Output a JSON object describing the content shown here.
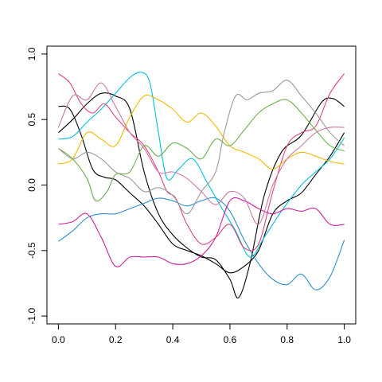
{
  "chart_data": {
    "type": "line",
    "title": "",
    "xlabel": "",
    "ylabel": "",
    "xlim": [
      -0.04,
      1.04
    ],
    "ylim": [
      -1.06,
      1.06
    ],
    "x_ticks": [
      0.0,
      0.2,
      0.4,
      0.6,
      0.8,
      1.0
    ],
    "x_tick_labels": [
      "0.0",
      "0.2",
      "0.4",
      "0.6",
      "0.8",
      "1.0"
    ],
    "y_ticks": [
      -1.0,
      -0.5,
      0.0,
      0.5,
      1.0
    ],
    "y_tick_labels": [
      "-1.0",
      "-0.5",
      "0.0",
      "0.5",
      "1.0"
    ],
    "grid": false,
    "legend": "none",
    "series": [
      {
        "color": "#000000",
        "points": [
          [
            0.0,
            0.4
          ],
          [
            0.05,
            0.5
          ],
          [
            0.1,
            0.62
          ],
          [
            0.15,
            0.7
          ],
          [
            0.2,
            0.68
          ],
          [
            0.25,
            0.58
          ],
          [
            0.3,
            0.1
          ],
          [
            0.35,
            -0.22
          ],
          [
            0.4,
            -0.38
          ],
          [
            0.45,
            -0.48
          ],
          [
            0.5,
            -0.55
          ],
          [
            0.55,
            -0.57
          ],
          [
            0.6,
            -0.72
          ],
          [
            0.63,
            -0.86
          ],
          [
            0.67,
            -0.6
          ],
          [
            0.72,
            -0.08
          ],
          [
            0.78,
            0.25
          ],
          [
            0.85,
            0.38
          ],
          [
            0.92,
            0.63
          ],
          [
            0.96,
            0.66
          ],
          [
            1.0,
            0.6
          ]
        ]
      },
      {
        "color": "#000000",
        "points": [
          [
            0.0,
            0.6
          ],
          [
            0.04,
            0.58
          ],
          [
            0.08,
            0.38
          ],
          [
            0.12,
            0.12
          ],
          [
            0.16,
            0.06
          ],
          [
            0.2,
            0.04
          ],
          [
            0.25,
            -0.06
          ],
          [
            0.3,
            -0.16
          ],
          [
            0.35,
            -0.3
          ],
          [
            0.4,
            -0.45
          ],
          [
            0.45,
            -0.5
          ],
          [
            0.5,
            -0.54
          ],
          [
            0.55,
            -0.6
          ],
          [
            0.6,
            -0.67
          ],
          [
            0.65,
            -0.62
          ],
          [
            0.7,
            -0.5
          ],
          [
            0.75,
            -0.22
          ],
          [
            0.8,
            -0.12
          ],
          [
            0.85,
            -0.06
          ],
          [
            0.9,
            0.08
          ],
          [
            0.95,
            0.22
          ],
          [
            1.0,
            0.4
          ]
        ]
      },
      {
        "color": "#00BFDF",
        "points": [
          [
            0.0,
            0.35
          ],
          [
            0.05,
            0.37
          ],
          [
            0.1,
            0.48
          ],
          [
            0.15,
            0.58
          ],
          [
            0.2,
            0.7
          ],
          [
            0.25,
            0.82
          ],
          [
            0.29,
            0.86
          ],
          [
            0.32,
            0.78
          ],
          [
            0.35,
            0.4
          ],
          [
            0.38,
            0.05
          ],
          [
            0.42,
            0.12
          ],
          [
            0.47,
            0.2
          ],
          [
            0.52,
            0.02
          ],
          [
            0.57,
            -0.17
          ],
          [
            0.62,
            -0.35
          ],
          [
            0.67,
            -0.55
          ],
          [
            0.72,
            -0.4
          ],
          [
            0.78,
            -0.2
          ],
          [
            0.85,
            0.0
          ],
          [
            0.9,
            0.1
          ],
          [
            0.95,
            0.2
          ],
          [
            1.0,
            0.36
          ]
        ]
      },
      {
        "color": "#2D8FCC",
        "points": [
          [
            0.0,
            -0.43
          ],
          [
            0.05,
            -0.35
          ],
          [
            0.1,
            -0.25
          ],
          [
            0.15,
            -0.22
          ],
          [
            0.2,
            -0.22
          ],
          [
            0.25,
            -0.18
          ],
          [
            0.3,
            -0.14
          ],
          [
            0.35,
            -0.1
          ],
          [
            0.4,
            -0.12
          ],
          [
            0.45,
            -0.16
          ],
          [
            0.5,
            -0.12
          ],
          [
            0.55,
            -0.1
          ],
          [
            0.6,
            -0.2
          ],
          [
            0.65,
            -0.42
          ],
          [
            0.7,
            -0.6
          ],
          [
            0.75,
            -0.72
          ],
          [
            0.8,
            -0.76
          ],
          [
            0.85,
            -0.68
          ],
          [
            0.9,
            -0.8
          ],
          [
            0.95,
            -0.7
          ],
          [
            1.0,
            -0.42
          ]
        ]
      },
      {
        "color": "#CC1F99",
        "points": [
          [
            0.0,
            -0.3
          ],
          [
            0.05,
            -0.28
          ],
          [
            0.1,
            -0.22
          ],
          [
            0.15,
            -0.4
          ],
          [
            0.2,
            -0.62
          ],
          [
            0.25,
            -0.55
          ],
          [
            0.3,
            -0.55
          ],
          [
            0.35,
            -0.55
          ],
          [
            0.4,
            -0.6
          ],
          [
            0.45,
            -0.6
          ],
          [
            0.5,
            -0.54
          ],
          [
            0.55,
            -0.4
          ],
          [
            0.6,
            -0.12
          ],
          [
            0.65,
            -0.12
          ],
          [
            0.7,
            -0.18
          ],
          [
            0.75,
            -0.22
          ],
          [
            0.8,
            -0.18
          ],
          [
            0.85,
            -0.2
          ],
          [
            0.9,
            -0.18
          ],
          [
            0.95,
            -0.3
          ],
          [
            1.0,
            -0.3
          ]
        ]
      },
      {
        "color": "#E0457B",
        "points": [
          [
            0.0,
            0.85
          ],
          [
            0.04,
            0.78
          ],
          [
            0.08,
            0.62
          ],
          [
            0.12,
            0.55
          ],
          [
            0.16,
            0.62
          ],
          [
            0.2,
            0.52
          ],
          [
            0.25,
            0.4
          ],
          [
            0.3,
            0.3
          ],
          [
            0.35,
            0.1
          ],
          [
            0.38,
            -0.05
          ],
          [
            0.41,
            -0.1
          ],
          [
            0.45,
            -0.3
          ],
          [
            0.5,
            -0.45
          ],
          [
            0.55,
            -0.4
          ],
          [
            0.6,
            -0.3
          ],
          [
            0.65,
            -0.48
          ],
          [
            0.7,
            -0.45
          ],
          [
            0.75,
            -0.05
          ],
          [
            0.8,
            0.3
          ],
          [
            0.85,
            0.4
          ],
          [
            0.9,
            0.45
          ],
          [
            0.95,
            0.7
          ],
          [
            1.0,
            0.85
          ]
        ]
      },
      {
        "color": "#F5B800",
        "points": [
          [
            0.0,
            0.16
          ],
          [
            0.05,
            0.2
          ],
          [
            0.1,
            0.4
          ],
          [
            0.15,
            0.35
          ],
          [
            0.2,
            0.3
          ],
          [
            0.25,
            0.52
          ],
          [
            0.3,
            0.68
          ],
          [
            0.35,
            0.65
          ],
          [
            0.4,
            0.58
          ],
          [
            0.45,
            0.48
          ],
          [
            0.5,
            0.55
          ],
          [
            0.55,
            0.45
          ],
          [
            0.6,
            0.3
          ],
          [
            0.65,
            0.25
          ],
          [
            0.7,
            0.2
          ],
          [
            0.75,
            0.12
          ],
          [
            0.8,
            0.2
          ],
          [
            0.85,
            0.25
          ],
          [
            0.9,
            0.22
          ],
          [
            0.95,
            0.18
          ],
          [
            1.0,
            0.16
          ]
        ]
      },
      {
        "color": "#6AB04C",
        "points": [
          [
            0.0,
            0.28
          ],
          [
            0.05,
            0.2
          ],
          [
            0.1,
            0.05
          ],
          [
            0.13,
            -0.12
          ],
          [
            0.17,
            -0.05
          ],
          [
            0.2,
            0.08
          ],
          [
            0.25,
            0.1
          ],
          [
            0.3,
            0.3
          ],
          [
            0.35,
            0.22
          ],
          [
            0.4,
            0.32
          ],
          [
            0.45,
            0.28
          ],
          [
            0.5,
            0.2
          ],
          [
            0.55,
            0.35
          ],
          [
            0.6,
            0.3
          ],
          [
            0.65,
            0.42
          ],
          [
            0.7,
            0.55
          ],
          [
            0.75,
            0.62
          ],
          [
            0.8,
            0.65
          ],
          [
            0.85,
            0.55
          ],
          [
            0.9,
            0.42
          ],
          [
            0.95,
            0.3
          ],
          [
            1.0,
            0.26
          ]
        ]
      },
      {
        "color": "#999999",
        "points": [
          [
            0.0,
            0.28
          ],
          [
            0.05,
            0.2
          ],
          [
            0.1,
            0.25
          ],
          [
            0.15,
            0.2
          ],
          [
            0.2,
            0.1
          ],
          [
            0.25,
            0.05
          ],
          [
            0.3,
            -0.05
          ],
          [
            0.35,
            -0.02
          ],
          [
            0.4,
            -0.08
          ],
          [
            0.45,
            -0.22
          ],
          [
            0.5,
            -0.05
          ],
          [
            0.55,
            0.1
          ],
          [
            0.58,
            0.4
          ],
          [
            0.62,
            0.68
          ],
          [
            0.66,
            0.65
          ],
          [
            0.7,
            0.7
          ],
          [
            0.75,
            0.72
          ],
          [
            0.8,
            0.8
          ],
          [
            0.85,
            0.68
          ],
          [
            0.9,
            0.55
          ],
          [
            0.95,
            0.4
          ],
          [
            1.0,
            0.3
          ]
        ]
      },
      {
        "color": "#CC79A7",
        "points": [
          [
            0.0,
            0.44
          ],
          [
            0.05,
            0.68
          ],
          [
            0.1,
            0.65
          ],
          [
            0.15,
            0.78
          ],
          [
            0.2,
            0.6
          ],
          [
            0.25,
            0.4
          ],
          [
            0.3,
            0.28
          ],
          [
            0.35,
            0.1
          ],
          [
            0.4,
            0.1
          ],
          [
            0.45,
            0.05
          ],
          [
            0.5,
            -0.05
          ],
          [
            0.55,
            -0.15
          ],
          [
            0.6,
            -0.05
          ],
          [
            0.65,
            -0.1
          ],
          [
            0.7,
            -0.3
          ],
          [
            0.75,
            0.0
          ],
          [
            0.8,
            0.2
          ],
          [
            0.85,
            0.3
          ],
          [
            0.9,
            0.4
          ],
          [
            0.95,
            0.44
          ],
          [
            1.0,
            0.44
          ]
        ]
      }
    ]
  }
}
